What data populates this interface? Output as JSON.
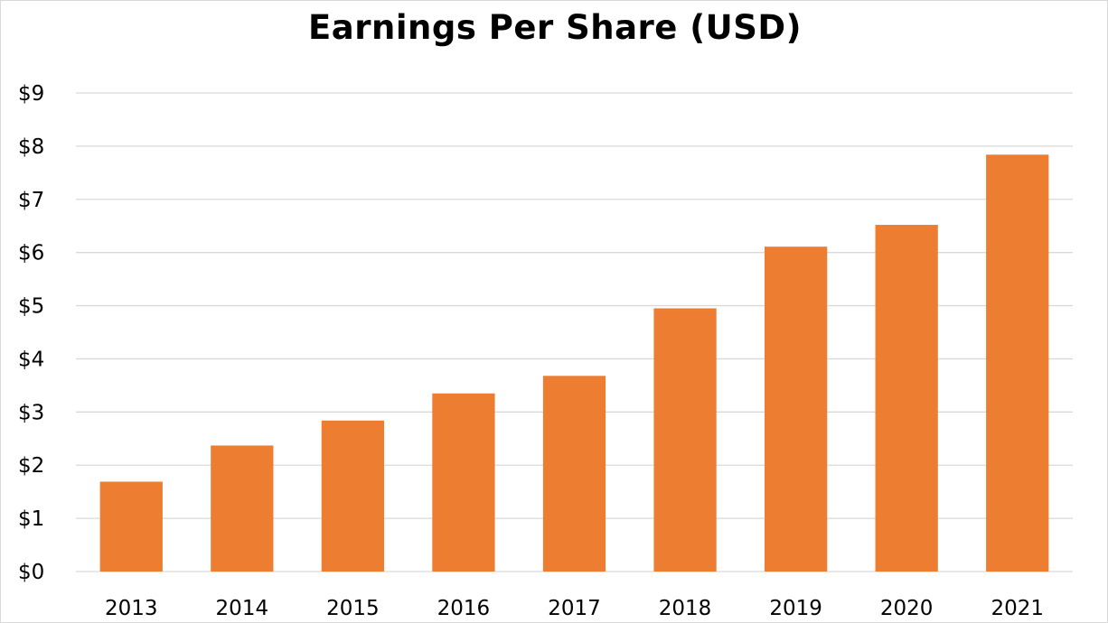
{
  "chart_data": {
    "type": "bar",
    "title": "Earnings Per Share (USD)",
    "xlabel": "",
    "ylabel": "",
    "categories": [
      "2013",
      "2014",
      "2015",
      "2016",
      "2017",
      "2018",
      "2019",
      "2020",
      "2021"
    ],
    "values": [
      1.69,
      2.37,
      2.84,
      3.35,
      3.68,
      4.95,
      6.11,
      6.52,
      7.84
    ],
    "ylim": [
      0,
      9
    ],
    "yticks": [
      0,
      1,
      2,
      3,
      4,
      5,
      6,
      7,
      8,
      9
    ],
    "ytick_labels": [
      "$0",
      "$1",
      "$2",
      "$3",
      "$4",
      "$5",
      "$6",
      "$7",
      "$8",
      "$9"
    ],
    "grid": true,
    "legend": "none",
    "colors": {
      "bar": "#ed7d31",
      "grid": "#d9d9d9",
      "axis": "#d9d9d9"
    }
  }
}
